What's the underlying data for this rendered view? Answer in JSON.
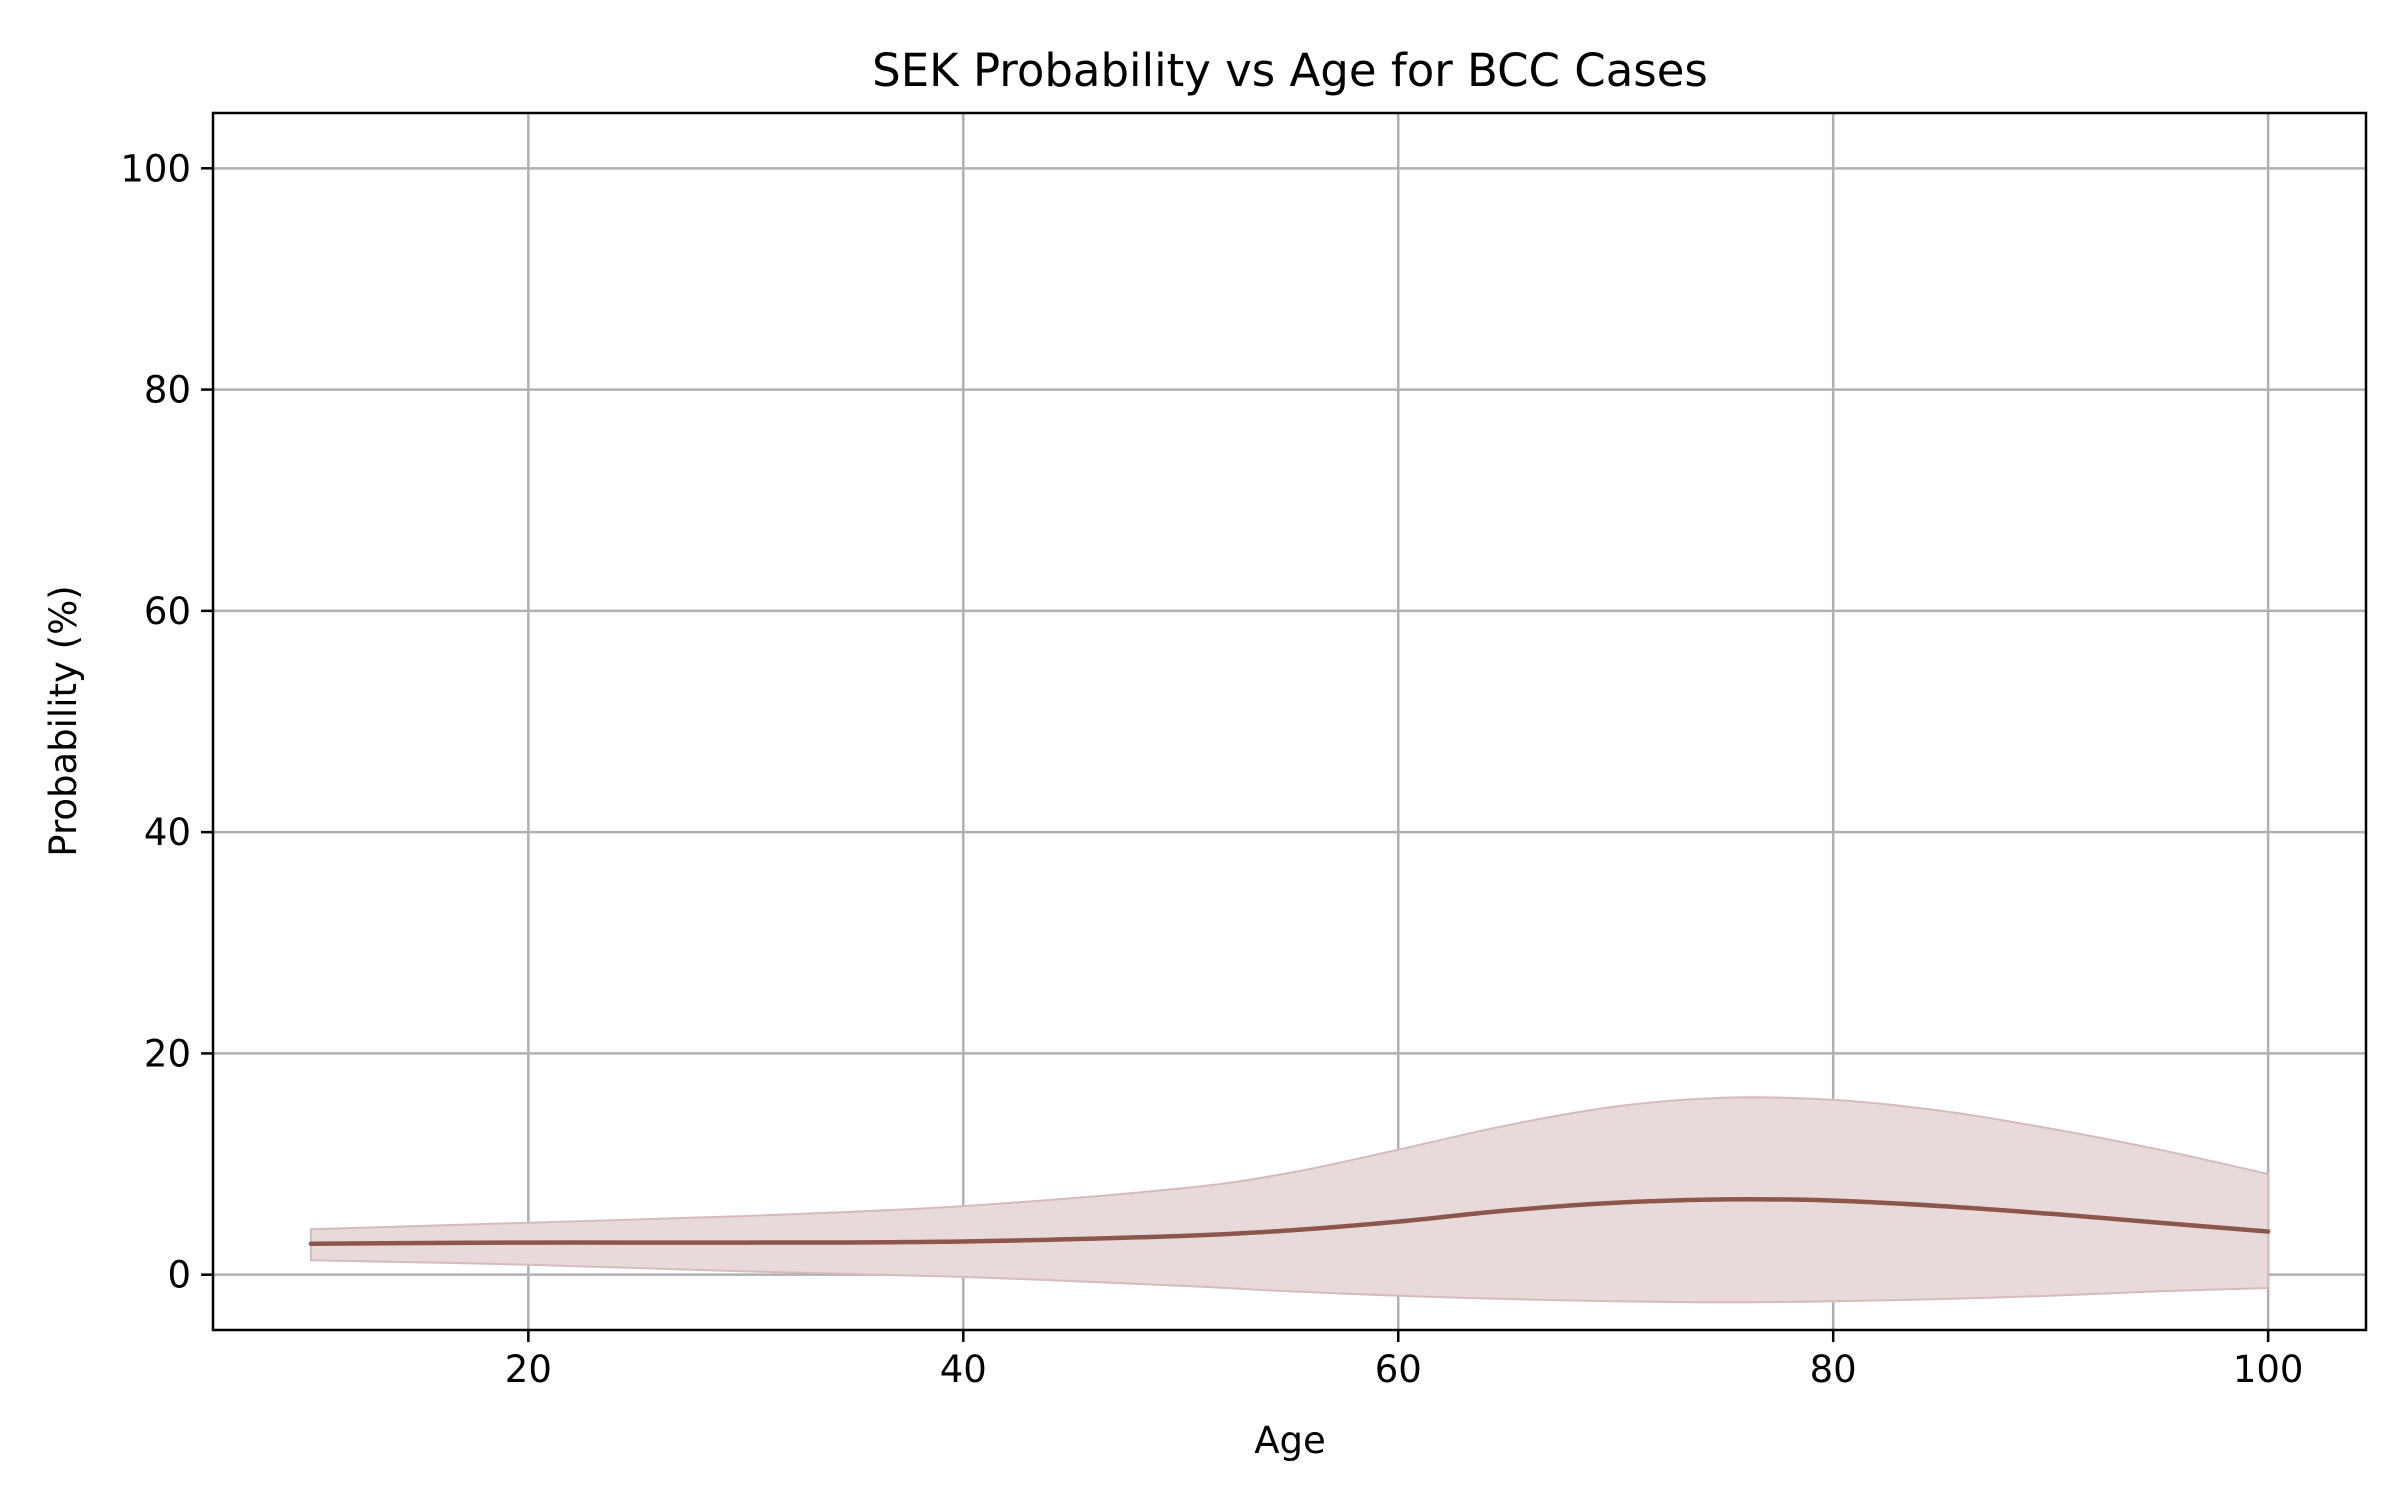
{
  "chart_data": {
    "type": "line",
    "title": "SEK Probability vs Age for BCC Cases",
    "xlabel": "Age",
    "ylabel": "Probability (%)",
    "xlim": [
      5.5,
      104.5
    ],
    "ylim": [
      -5,
      105
    ],
    "x_ticks": [
      20,
      40,
      60,
      80,
      100
    ],
    "y_ticks": [
      0,
      20,
      40,
      60,
      80,
      100
    ],
    "x_tick_labels": [
      "20",
      "40",
      "60",
      "80",
      "100"
    ],
    "y_tick_labels": [
      "0",
      "20",
      "40",
      "60",
      "80",
      "100"
    ],
    "grid": true,
    "series": [
      {
        "color": "#8c564b",
        "x": [
          10,
          20,
          30,
          40,
          50,
          55,
          60,
          65,
          70,
          75,
          80,
          85,
          90,
          95,
          100
        ],
        "values": [
          2.8,
          2.9,
          2.9,
          3.0,
          3.5,
          4.0,
          4.8,
          5.8,
          6.5,
          6.8,
          6.7,
          6.2,
          5.5,
          4.7,
          3.9
        ],
        "band_lower": [
          1.3,
          0.9,
          0.3,
          -0.2,
          -1.0,
          -1.5,
          -1.9,
          -2.2,
          -2.4,
          -2.5,
          -2.4,
          -2.2,
          -1.9,
          -1.5,
          -1.2
        ],
        "band_upper": [
          4.1,
          4.7,
          5.3,
          6.2,
          7.8,
          9.2,
          11.3,
          13.5,
          15.2,
          16.0,
          15.8,
          14.8,
          13.2,
          11.3,
          9.1
        ],
        "band_color": "#e8dada"
      }
    ]
  }
}
